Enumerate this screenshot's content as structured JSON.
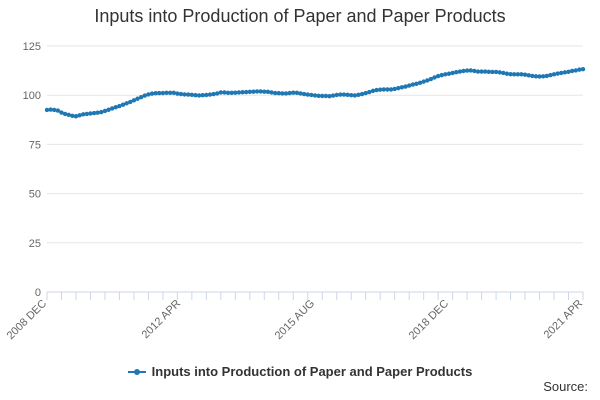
{
  "chart_data": {
    "type": "line",
    "title": "Inputs into Production of Paper and Paper Products",
    "xlabel": "",
    "ylabel": "",
    "ylim": [
      0,
      125
    ],
    "yticks": [
      0,
      25,
      50,
      75,
      100,
      125
    ],
    "x_start": "2008 DEC",
    "x_end": "2021 APR",
    "x_tick_labels": [
      "2008 DEC",
      "2012 APR",
      "2015 AUG",
      "2018 DEC",
      "2021 APR"
    ],
    "grid": true,
    "legend_position": "bottom",
    "series": [
      {
        "name": "Inputs into Production of Paper and Paper Products",
        "color": "#1f78b4",
        "values": [
          92.5,
          92.7,
          92.5,
          92.2,
          91.2,
          90.5,
          90.0,
          89.5,
          89.3,
          89.8,
          90.3,
          90.5,
          90.7,
          90.9,
          91.1,
          91.4,
          92.0,
          92.6,
          93.3,
          93.9,
          94.5,
          95.2,
          95.9,
          96.6,
          97.4,
          98.2,
          99.0,
          99.8,
          100.4,
          100.8,
          101.0,
          101.1,
          101.1,
          101.2,
          101.2,
          101.2,
          100.8,
          100.6,
          100.4,
          100.3,
          100.2,
          100.0,
          99.9,
          100.0,
          100.1,
          100.3,
          100.6,
          100.9,
          101.4,
          101.4,
          101.2,
          101.2,
          101.3,
          101.4,
          101.5,
          101.6,
          101.7,
          101.8,
          101.9,
          101.9,
          101.8,
          101.7,
          101.4,
          101.1,
          101.0,
          100.9,
          100.9,
          101.1,
          101.3,
          101.2,
          100.9,
          100.6,
          100.3,
          100.1,
          99.9,
          99.7,
          99.6,
          99.6,
          99.5,
          99.8,
          100.1,
          100.3,
          100.3,
          100.2,
          100.0,
          99.9,
          100.2,
          100.6,
          101.1,
          101.6,
          102.2,
          102.6,
          102.8,
          102.9,
          102.9,
          102.9,
          103.2,
          103.6,
          104.0,
          104.4,
          104.9,
          105.4,
          105.8,
          106.3,
          106.9,
          107.5,
          108.2,
          109.0,
          109.7,
          110.2,
          110.6,
          110.9,
          111.3,
          111.7,
          112.0,
          112.3,
          112.5,
          112.6,
          112.3,
          112.0,
          112.0,
          112.0,
          111.9,
          111.8,
          111.8,
          111.6,
          111.3,
          110.9,
          110.7,
          110.6,
          110.6,
          110.6,
          110.4,
          110.1,
          109.8,
          109.6,
          109.5,
          109.6,
          109.8,
          110.2,
          110.6,
          111.0,
          111.3,
          111.6,
          111.9,
          112.3,
          112.6,
          113.0,
          113.2
        ]
      }
    ],
    "source_label": "Source:"
  }
}
